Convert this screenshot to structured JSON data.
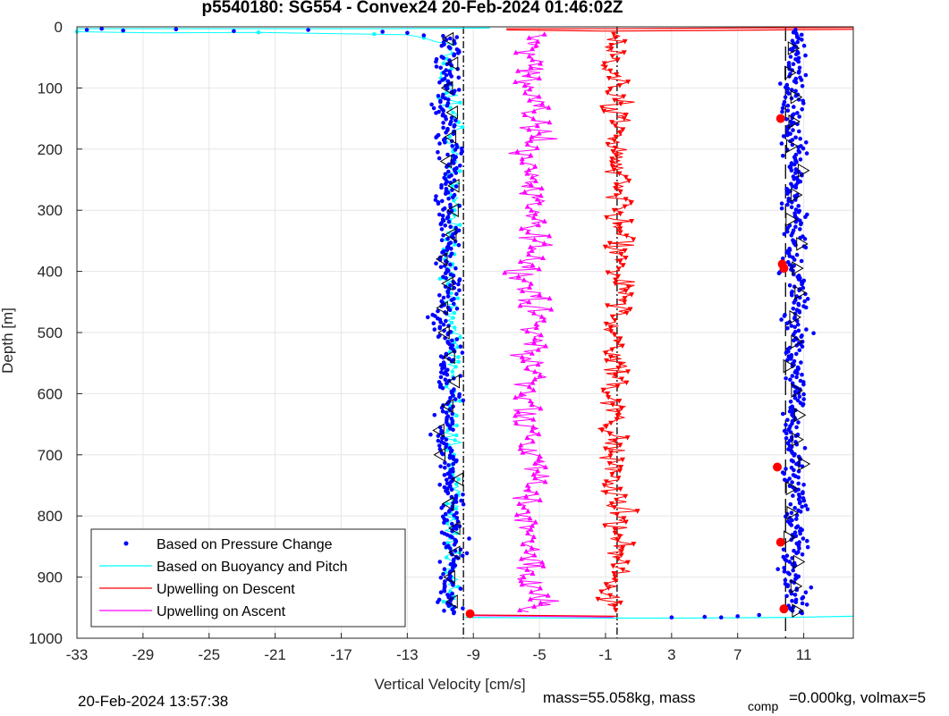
{
  "chart_data": {
    "type": "scatter",
    "title": "p5540180: SG554 - Convex24 20-Feb-2024 01:46:02Z",
    "xlabel": "Vertical Velocity [cm/s]",
    "ylabel": "Depth [m]",
    "xlim": [
      -33,
      14
    ],
    "ylim": [
      1000,
      0
    ],
    "y_reversed": true,
    "grid": true,
    "xticks": [
      "-33",
      "-29",
      "-25",
      "-21",
      "-17",
      "-13",
      "-9",
      "-5",
      "-1",
      "3",
      "7",
      "11"
    ],
    "yticks": [
      "0",
      "100",
      "200",
      "300",
      "400",
      "500",
      "600",
      "700",
      "800",
      "900",
      "1000"
    ],
    "legend_placement": "bottom-left",
    "series": [
      {
        "name": "Based on Pressure Change",
        "color": "#0000ff",
        "style": "dots",
        "descent_center": -10.5,
        "ascent_center": 10.5,
        "spread": 0.9
      },
      {
        "name": "Based on Buoyancy and Pitch",
        "color": "#00ffff",
        "style": "line-dots",
        "descent_center": -10.3,
        "spread": 0.7
      },
      {
        "name": "Upwelling on Descent",
        "color": "#ff0000",
        "style": "line-triangles-down",
        "center": -0.4,
        "spread": 1.2
      },
      {
        "name": "Upwelling on Ascent",
        "color": "#ff00ff",
        "style": "line-triangles-up",
        "center": -5.5,
        "spread": 1.3
      }
    ],
    "reference_lines": [
      {
        "x": -9.6,
        "style": "dash-dot",
        "color": "#000000"
      },
      {
        "x": -0.3,
        "style": "dash-dot",
        "color": "#000000"
      },
      {
        "x": 9.9,
        "style": "long-dash",
        "color": "#000000"
      }
    ],
    "red_markers": [
      {
        "x": 9.6,
        "y": 150
      },
      {
        "x": 9.7,
        "y": 388
      },
      {
        "x": 9.8,
        "y": 395
      },
      {
        "x": 9.4,
        "y": 720
      },
      {
        "x": 9.6,
        "y": 843
      },
      {
        "x": 9.8,
        "y": 952
      },
      {
        "x": -9.2,
        "y": 960
      }
    ]
  },
  "footer": {
    "timestamp": "20-Feb-2024 13:57:38",
    "mass_text": "mass=55.058kg, mass",
    "comp_subscript": "comp",
    "comp_text": "=0.000kg, volmax=5"
  }
}
